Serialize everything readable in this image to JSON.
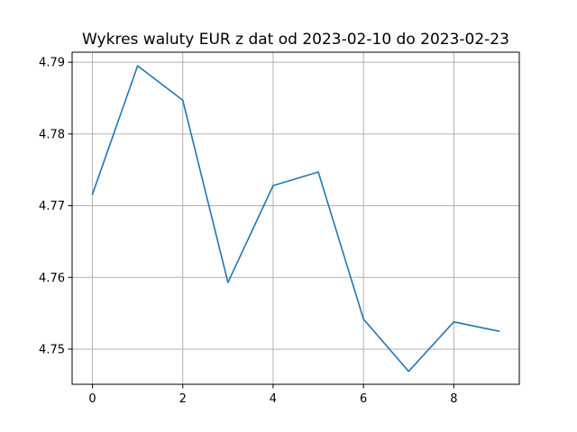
{
  "chart_data": {
    "type": "line",
    "title": "Wykres waluty EUR z dat od 2023-02-10 do 2023-02-23",
    "xlabel": "",
    "ylabel": "",
    "x": [
      0,
      1,
      2,
      3,
      4,
      5,
      6,
      7,
      8,
      9
    ],
    "series": [
      {
        "values": [
          4.7716,
          4.7895,
          4.7847,
          4.7593,
          4.7728,
          4.7747,
          4.7542,
          4.7469,
          4.7538,
          4.7525
        ],
        "color": "#1f77b4"
      }
    ],
    "xlim": [
      -0.45,
      9.45
    ],
    "ylim": [
      4.7451,
      4.7914
    ],
    "xticks": [
      0,
      2,
      4,
      6,
      8
    ],
    "xtick_labels": [
      "0",
      "2",
      "4",
      "6",
      "8"
    ],
    "yticks": [
      4.75,
      4.76,
      4.77,
      4.78,
      4.79
    ],
    "ytick_labels": [
      "4.75",
      "4.76",
      "4.77",
      "4.78",
      "4.79"
    ],
    "grid": true,
    "legend": "none"
  }
}
